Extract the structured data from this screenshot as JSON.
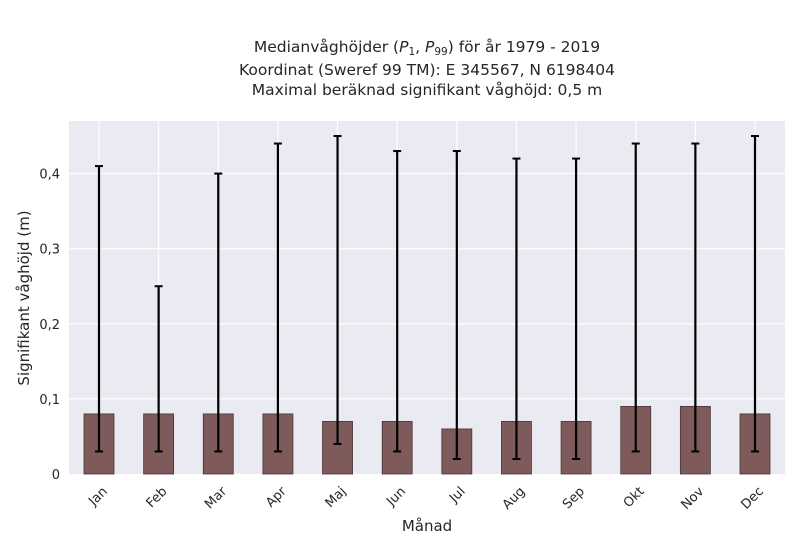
{
  "chart_data": {
    "type": "bar",
    "title_lines": [
      {
        "pre": "Medianvåghöjder (",
        "p1": "P",
        "p1_sub": "1",
        "sep": ", ",
        "p2": "P",
        "p2_sub": "99",
        "post": ") för år 1979 - 2019"
      },
      "Koordinat (Sweref 99 TM): E 345567, N 6198404",
      "Maximal beräknad signifikant våghöjd: 0,5 m"
    ],
    "xlabel": "Månad",
    "ylabel": "Signifikant våghöjd (m)",
    "categories": [
      "Jan",
      "Feb",
      "Mar",
      "Apr",
      "Maj",
      "Jun",
      "Jul",
      "Aug",
      "Sep",
      "Okt",
      "Nov",
      "Dec"
    ],
    "values": [
      0.08,
      0.08,
      0.08,
      0.08,
      0.07,
      0.07,
      0.06,
      0.07,
      0.07,
      0.09,
      0.09,
      0.08
    ],
    "error_low": [
      0.03,
      0.03,
      0.03,
      0.03,
      0.04,
      0.03,
      0.02,
      0.02,
      0.02,
      0.03,
      0.03,
      0.03
    ],
    "error_high": [
      0.41,
      0.25,
      0.4,
      0.44,
      0.45,
      0.43,
      0.43,
      0.42,
      0.42,
      0.44,
      0.44,
      0.45
    ],
    "yticks": [
      0,
      0.1,
      0.2,
      0.3,
      0.4
    ],
    "ytick_labels": [
      "0",
      "0,1",
      "0,2",
      "0,3",
      "0,4"
    ],
    "ylim": [
      0,
      0.47
    ],
    "grid": true,
    "colors": {
      "bar": "#7f5a5a",
      "bar_edge": "#4a3434",
      "error": "#000000",
      "background": "#eaeaf2",
      "grid": "#ffffff"
    }
  }
}
